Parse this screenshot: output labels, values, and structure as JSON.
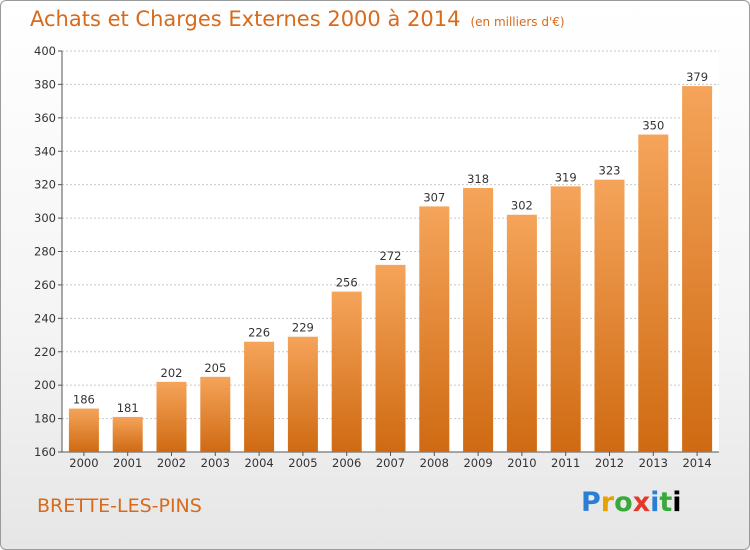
{
  "title": "Achats et Charges Externes 2000 à 2014",
  "unit_note": "(en milliers d'€)",
  "town": "BRETTE-LES-PINS",
  "logo": [
    "P",
    "r",
    "o",
    "x",
    "i",
    "t",
    "i"
  ],
  "colors": {
    "bar_top": "#f5a45a",
    "bar_bottom": "#cf6a12",
    "title": "#d86a1c"
  },
  "chart_data": {
    "type": "bar",
    "title": "Achats et Charges Externes 2000 à 2014",
    "categories": [
      "2000",
      "2001",
      "2002",
      "2003",
      "2004",
      "2005",
      "2006",
      "2007",
      "2008",
      "2009",
      "2010",
      "2011",
      "2012",
      "2013",
      "2014"
    ],
    "values": [
      186,
      181,
      202,
      205,
      226,
      229,
      256,
      272,
      307,
      318,
      302,
      319,
      323,
      350,
      379
    ],
    "ylim": [
      160,
      400
    ],
    "yticks": [
      160,
      180,
      200,
      220,
      240,
      260,
      280,
      300,
      320,
      340,
      360,
      380,
      400
    ],
    "grid": "horizontal-dashed",
    "xlabel": "",
    "ylabel": ""
  }
}
